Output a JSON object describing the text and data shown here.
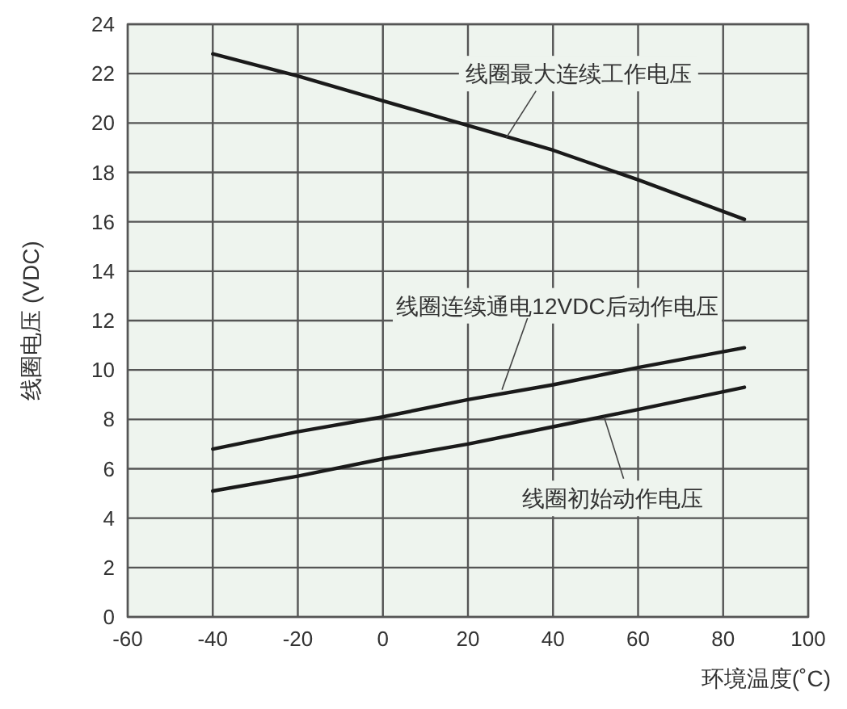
{
  "chart_data": {
    "type": "line",
    "xlabel": "环境温度(˚C)",
    "ylabel": "线圈电压 (VDC)",
    "x": [
      -40,
      -20,
      0,
      20,
      40,
      60,
      85
    ],
    "series": [
      {
        "name": "线圈最大连续工作电压",
        "color": "#1a1a1a",
        "values": [
          22.8,
          21.9,
          20.9,
          19.9,
          18.9,
          17.7,
          16.1
        ]
      },
      {
        "name": "线圈连续通电12VDC后动作电压",
        "color": "#1a1a1a",
        "values": [
          6.8,
          7.5,
          8.1,
          8.8,
          9.4,
          10.1,
          10.9
        ]
      },
      {
        "name": "线圈初始动作电压",
        "color": "#1a1a1a",
        "values": [
          5.1,
          5.7,
          6.4,
          7.0,
          7.7,
          8.4,
          9.3
        ]
      }
    ],
    "xlim": [
      -60,
      100
    ],
    "xticks": [
      -60,
      -40,
      -20,
      0,
      20,
      40,
      60,
      80,
      100
    ],
    "ylim": [
      0,
      24
    ],
    "yticks": [
      0,
      2,
      4,
      6,
      8,
      10,
      12,
      14,
      16,
      18,
      20,
      22,
      24
    ],
    "grid": true,
    "marker": "none",
    "line_style": "solid"
  }
}
